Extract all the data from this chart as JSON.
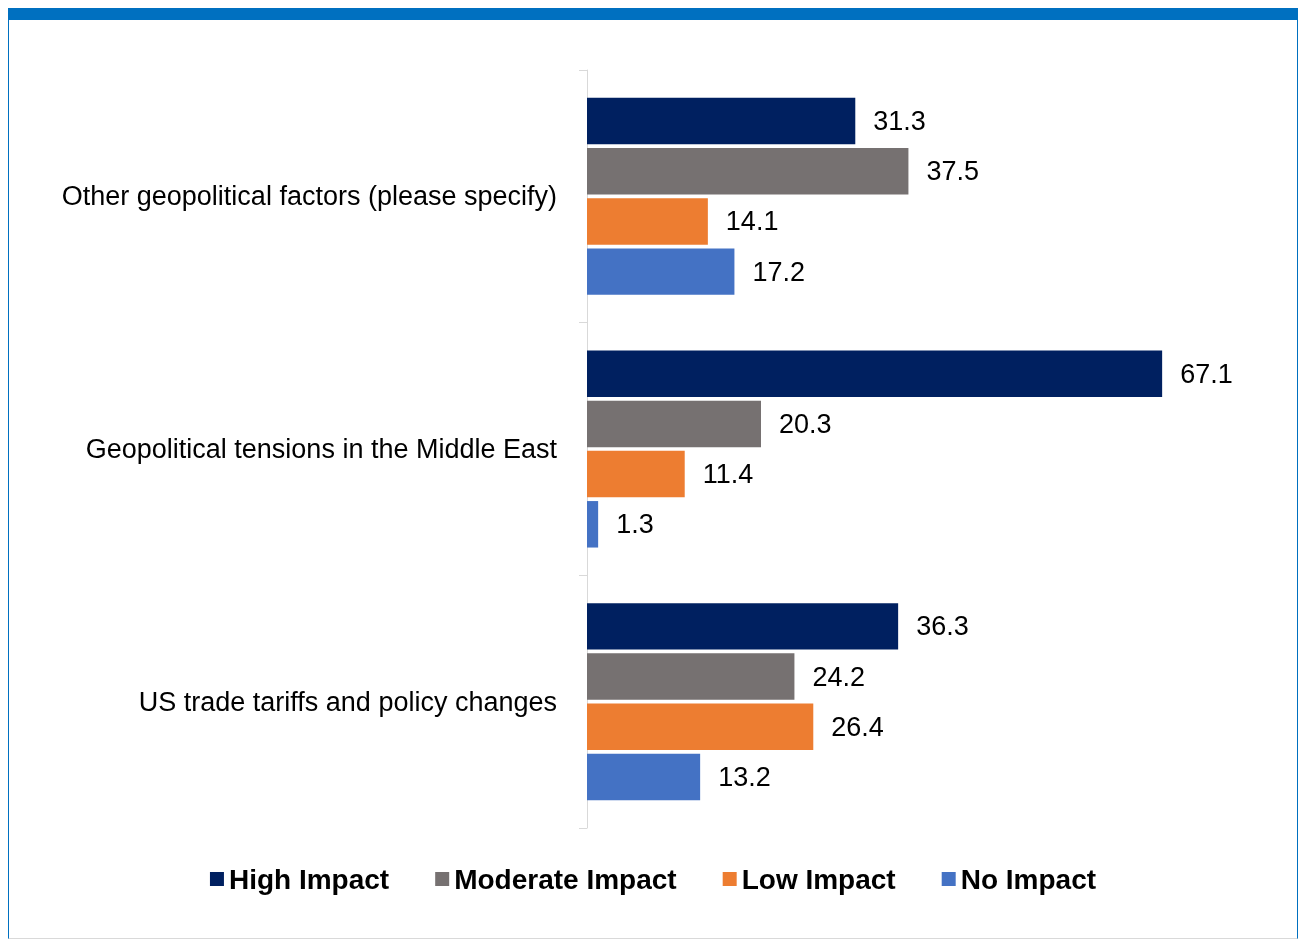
{
  "chart_data": {
    "type": "bar",
    "orientation": "horizontal",
    "categories": [
      "Other geopolitical factors (please specify)",
      "Geopolitical tensions in the Middle East",
      "US trade tariffs and policy changes"
    ],
    "series": [
      {
        "name": "High Impact",
        "color": "#002060",
        "values": [
          31.3,
          67.1,
          36.3
        ]
      },
      {
        "name": "Moderate Impact",
        "color": "#767171",
        "values": [
          37.5,
          20.3,
          24.2
        ]
      },
      {
        "name": "Low Impact",
        "color": "#ed7d31",
        "values": [
          14.1,
          11.4,
          26.4
        ]
      },
      {
        "name": "No Impact",
        "color": "#4472c4",
        "values": [
          17.2,
          1.3,
          13.2
        ]
      }
    ],
    "data_labels": true,
    "legend": "bottom"
  }
}
